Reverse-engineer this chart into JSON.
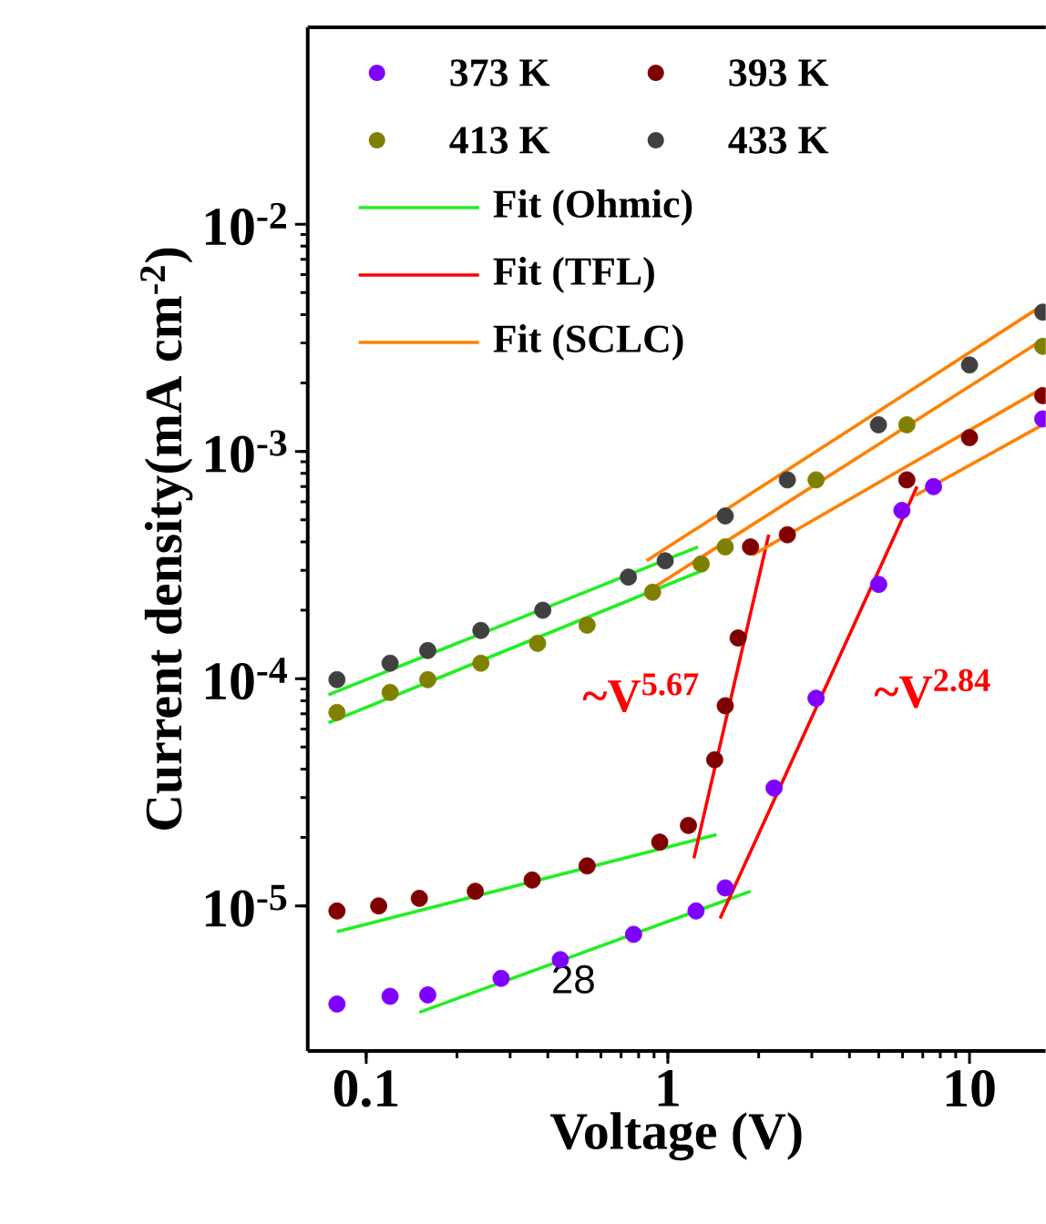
{
  "chart_data": {
    "type": "scatter",
    "xlabel": "Voltage (V)",
    "ylabel": "Current density(mA cm$^{-2}$)",
    "log": "xy",
    "xlim": [
      0.064,
      17.9
    ],
    "ylim": [
      2.3e-06,
      0.0735
    ],
    "xticks": [
      0.1,
      1,
      10
    ],
    "yticks": [
      {
        "value": 1e-05,
        "label": "10$^{-5}$"
      },
      {
        "value": 0.0001,
        "label": "10$^{-4}$"
      },
      {
        "value": 0.001,
        "label": "10$^{-3}$"
      },
      {
        "value": 0.01,
        "label": "10$^{-2}$"
      }
    ],
    "marker": "circle",
    "legend": "top left",
    "grid": false,
    "series": [
      {
        "name": "373 K",
        "color": "#8000ff",
        "x": [
          0.08,
          0.12,
          0.16,
          0.28,
          0.44,
          0.77,
          1.24,
          1.55,
          2.25,
          3.1,
          5.0,
          5.97,
          7.6,
          17.5
        ],
        "values": [
          3.7e-06,
          4e-06,
          4.06e-06,
          4.8e-06,
          5.8e-06,
          7.5e-06,
          9.5e-06,
          1.2e-05,
          3.3e-05,
          8.2e-05,
          0.00026,
          0.00055,
          0.0007,
          0.00139
        ]
      },
      {
        "name": "393 K",
        "color": "#800000",
        "x": [
          0.08,
          0.11,
          0.15,
          0.23,
          0.355,
          0.54,
          0.94,
          1.17,
          1.43,
          1.55,
          1.71,
          1.88,
          2.49,
          6.2,
          10,
          17.5
        ],
        "values": [
          9.5e-06,
          1e-05,
          1.08e-05,
          1.16e-05,
          1.3e-05,
          1.5e-05,
          1.91e-05,
          2.26e-05,
          4.4e-05,
          7.6e-05,
          0.000151,
          0.00038,
          0.00043,
          0.00075,
          0.00115,
          0.00176
        ]
      },
      {
        "name": "413 K",
        "color": "#808000",
        "x": [
          0.08,
          0.12,
          0.16,
          0.24,
          0.37,
          0.54,
          0.89,
          1.29,
          1.55,
          3.1,
          6.2,
          17.5
        ],
        "values": [
          7.1e-05,
          8.7e-05,
          9.9e-05,
          0.000117,
          0.000143,
          0.000172,
          0.00024,
          0.00032,
          0.00038,
          0.00075,
          0.00131,
          0.0029
        ]
      },
      {
        "name": "433 K",
        "color": "#404040",
        "x": [
          0.08,
          0.12,
          0.16,
          0.24,
          0.385,
          0.74,
          0.98,
          1.55,
          2.49,
          4.99,
          10,
          17.5
        ],
        "values": [
          9.9e-05,
          0.000117,
          0.000133,
          0.000163,
          0.0002,
          0.00028,
          0.00033,
          0.00052,
          0.00075,
          0.00131,
          0.0024,
          0.0041
        ]
      },
      {
        "name": "Fit (Ohmic)",
        "type": "line",
        "marker": "none",
        "color": "#22ee22",
        "x": [
          0.075,
          1.26
        ],
        "values": [
          8.5e-05,
          0.00038
        ]
      },
      {
        "type": "line",
        "marker": "none",
        "color": "#22ee22",
        "x": [
          0.075,
          1.35
        ],
        "values": [
          6.4e-05,
          0.000305
        ]
      },
      {
        "type": "line",
        "marker": "none",
        "color": "#22ee22",
        "x": [
          0.08,
          1.45
        ],
        "values": [
          7.7e-06,
          2.06e-05
        ]
      },
      {
        "type": "line",
        "marker": "none",
        "color": "#22ee22",
        "x": [
          0.15,
          1.88
        ],
        "values": [
          3.4e-06,
          1.16e-05
        ]
      },
      {
        "name": "Fit (TFL)",
        "type": "line",
        "marker": "none",
        "color": "#ff0000",
        "x": [
          1.22,
          2.16
        ],
        "values": [
          1.62e-05,
          0.00043
        ]
      },
      {
        "type": "line",
        "marker": "none",
        "color": "#ff0000",
        "x": [
          1.49,
          6.7
        ],
        "values": [
          8.8e-06,
          0.0007
        ]
      },
      {
        "name": "Fit (SCLC)",
        "type": "line",
        "marker": "none",
        "color": "#ff8000",
        "x": [
          0.85,
          17.5
        ],
        "values": [
          0.00033,
          0.0044
        ]
      },
      {
        "type": "line",
        "marker": "none",
        "color": "#ff8000",
        "x": [
          0.89,
          17.5
        ],
        "values": [
          0.00025,
          0.0031
        ]
      },
      {
        "type": "line",
        "marker": "none",
        "color": "#ff8000",
        "x": [
          1.91,
          17.5
        ],
        "values": [
          0.00035,
          0.0019
        ]
      },
      {
        "type": "line",
        "marker": "none",
        "color": "#ff8000",
        "x": [
          6.6,
          17.5
        ],
        "values": [
          0.00064,
          0.00131
        ]
      }
    ],
    "annotations": [
      "~V$^{5.67}$",
      "~V$^{2.84}$",
      "28"
    ]
  }
}
